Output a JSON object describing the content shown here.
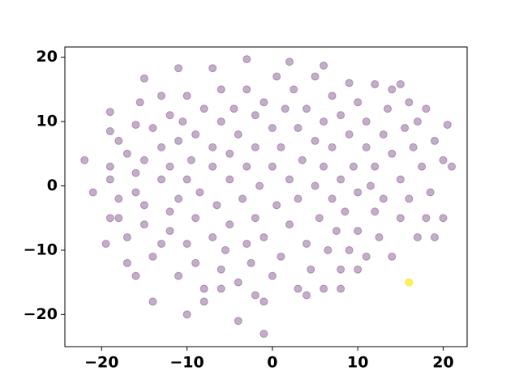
{
  "chart_data": {
    "type": "scatter",
    "xlim": [
      -24.3,
      22.8
    ],
    "ylim": [
      -25.0,
      21.6
    ],
    "xticks": [
      {
        "value": -20,
        "label": "−20"
      },
      {
        "value": -10,
        "label": "−10"
      },
      0,
      10,
      20
    ],
    "yticks": [
      {
        "value": -20,
        "label": "−20"
      },
      {
        "value": -10,
        "label": "−10"
      },
      0,
      10,
      20
    ],
    "grid": false,
    "series": [
      {
        "color": "#440154",
        "x": [
          -22,
          -21,
          -19.5,
          -19,
          -19,
          -19,
          -19,
          -19,
          -18,
          -18,
          -17,
          -17,
          -17,
          -16,
          -16,
          -16,
          -15.5,
          -15,
          -15,
          -15,
          -15,
          -14,
          -14,
          -14,
          -13,
          -13,
          -13,
          -13,
          -12,
          -12,
          -12,
          -12,
          -11,
          -11,
          -11,
          -11,
          -10.5,
          -10,
          -10,
          -10,
          -10,
          -9.5,
          -9,
          -9,
          -9,
          -8.5,
          -8,
          -8,
          -7,
          -7,
          -7,
          -7,
          -6.5,
          -6,
          -6,
          -6,
          -5.5,
          -5,
          -5,
          -5,
          -4.5,
          -4,
          -4,
          -4,
          -3.5,
          -3,
          -3,
          -3,
          -3,
          -2.5,
          -2,
          -2,
          -2,
          -1.5,
          -1,
          -1,
          -1,
          -1,
          0,
          0,
          0,
          0.5,
          0.5,
          1,
          1,
          1.5,
          2,
          2,
          2,
          2.5,
          3,
          3,
          3,
          3.5,
          4,
          4,
          4.5,
          5,
          5,
          5,
          5.5,
          6,
          6,
          6,
          6,
          6.5,
          7,
          7,
          7,
          7.5,
          8,
          8,
          8,
          8.5,
          9,
          9,
          9,
          9.5,
          10,
          10,
          10,
          11,
          11,
          11,
          11.5,
          12,
          12,
          12,
          12.5,
          13,
          13,
          13.5,
          14,
          14,
          14,
          15,
          15,
          15,
          15.5,
          16,
          16,
          16.5,
          17,
          17,
          17.5,
          18,
          18,
          19,
          19,
          20,
          20,
          20.5,
          21,
          18.5,
          -18,
          -16,
          -8,
          -2,
          4,
          10,
          8,
          -6
        ],
        "values": [
          4,
          -1,
          -9,
          -5,
          1,
          3,
          8.5,
          11.5,
          7,
          -2,
          -8,
          -12,
          5,
          9.5,
          -1,
          2,
          13,
          16.7,
          -3,
          -6,
          4,
          -18,
          9,
          -11,
          6,
          1,
          -9,
          14,
          11,
          -4,
          -7,
          3,
          18.3,
          -14,
          7,
          -2,
          10,
          -20,
          -9,
          1,
          14,
          4,
          -5,
          -12,
          8,
          -1,
          -16,
          12,
          18.3,
          -8,
          3,
          6,
          -3,
          -13,
          10,
          15,
          -10,
          1,
          5,
          -6,
          12,
          -21,
          -15,
          8,
          -2,
          19.7,
          -9,
          3,
          15,
          -12,
          6,
          11,
          -5,
          0,
          -23,
          -18,
          13,
          -8,
          9,
          3,
          -14,
          -3,
          17,
          6,
          -11,
          12,
          19.3,
          -6,
          1,
          15,
          9,
          -16,
          -2,
          4,
          -9,
          12,
          -13,
          7,
          17,
          0,
          -5,
          18.7,
          -16,
          10,
          3,
          -10,
          -2,
          14,
          6,
          -7,
          -13,
          11,
          1,
          -4,
          8,
          16,
          -10,
          3,
          -1,
          13,
          -7,
          6,
          -11,
          10,
          0,
          -4,
          15.8,
          3,
          -8,
          8,
          -2,
          12,
          -11,
          5,
          15,
          15.8,
          -5,
          1,
          9,
          13,
          -2,
          6,
          10,
          -8,
          3,
          -5,
          12,
          7,
          -8,
          -5,
          4,
          9.5,
          3,
          -1,
          -5,
          -14,
          -18,
          -17,
          -17,
          -13,
          -16,
          -16
        ]
      },
      {
        "color": "#fde725",
        "x": [
          16
        ],
        "values": [
          -15
        ]
      }
    ]
  }
}
